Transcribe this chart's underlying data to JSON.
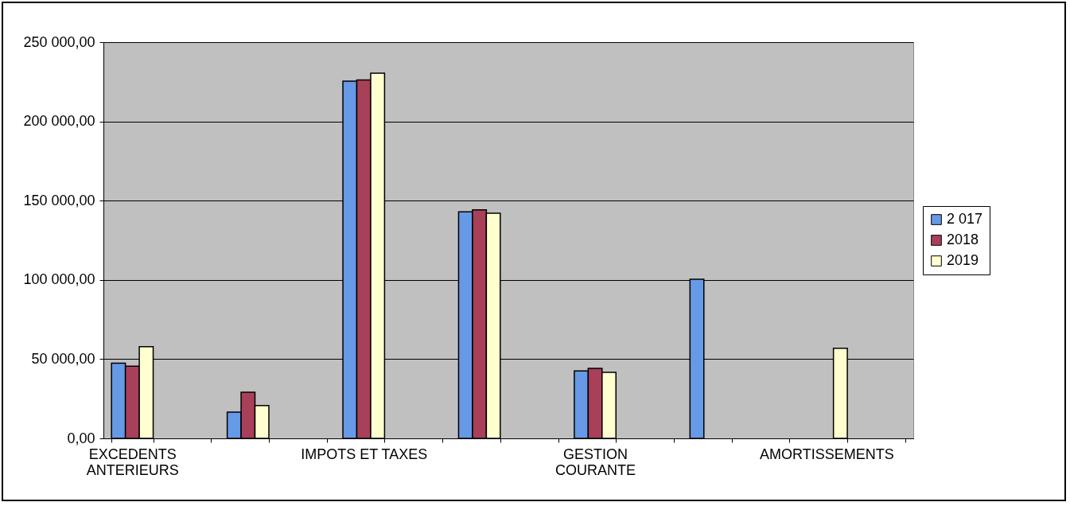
{
  "chart_data": {
    "type": "bar",
    "categories": [
      "EXCEDENTS\nANTERIEURS",
      null,
      null,
      null,
      "IMPOTS ET TAXES",
      null,
      null,
      null,
      "GESTION\nCOURANTE",
      null,
      null,
      null,
      "AMORTISSEMENTS",
      null
    ],
    "series": [
      {
        "name": "2 017",
        "color": "#6699e6",
        "values": [
          47500,
          null,
          16600,
          null,
          225400,
          null,
          142900,
          null,
          42500,
          null,
          100400,
          null,
          null,
          null
        ]
      },
      {
        "name": "2018",
        "color": "#a8405a",
        "values": [
          45500,
          null,
          29100,
          null,
          226200,
          null,
          144200,
          null,
          44200,
          null,
          null,
          null,
          null,
          null
        ]
      },
      {
        "name": "2019",
        "color": "#ffffd0",
        "values": [
          57900,
          null,
          20700,
          null,
          230400,
          null,
          142100,
          null,
          41700,
          null,
          null,
          null,
          56900,
          null
        ]
      }
    ],
    "ylim": [
      0,
      250000
    ],
    "yticks": [
      {
        "value": 0,
        "label": "0,00"
      },
      {
        "value": 50000,
        "label": "50 000,00"
      },
      {
        "value": 100000,
        "label": "100 000,00"
      },
      {
        "value": 150000,
        "label": "150 000,00"
      },
      {
        "value": 200000,
        "label": "200 000,00"
      },
      {
        "value": 250000,
        "label": "250 000,00"
      }
    ],
    "grid": "y",
    "legend": "right"
  }
}
